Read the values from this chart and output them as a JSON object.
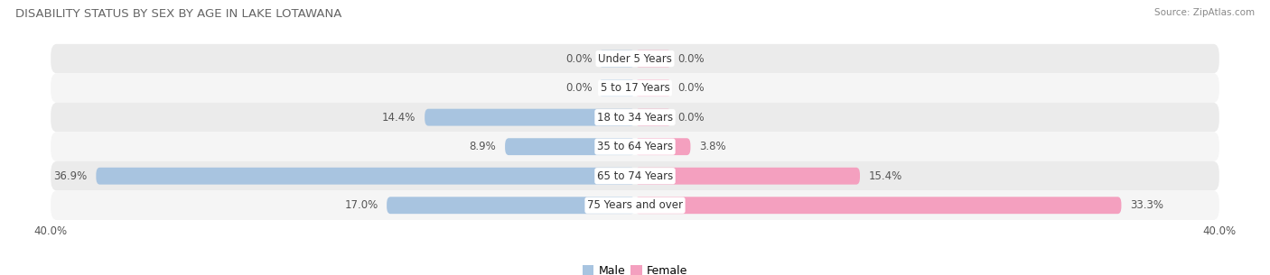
{
  "title": "DISABILITY STATUS BY SEX BY AGE IN LAKE LOTAWANA",
  "source": "Source: ZipAtlas.com",
  "categories": [
    "Under 5 Years",
    "5 to 17 Years",
    "18 to 34 Years",
    "35 to 64 Years",
    "65 to 74 Years",
    "75 Years and over"
  ],
  "male_values": [
    0.0,
    0.0,
    14.4,
    8.9,
    36.9,
    17.0
  ],
  "female_values": [
    0.0,
    0.0,
    0.0,
    3.8,
    15.4,
    33.3
  ],
  "male_color": "#a8c4e0",
  "female_color": "#f4a0bf",
  "row_colors": [
    "#ebebeb",
    "#f5f5f5",
    "#ebebeb",
    "#f5f5f5",
    "#ebebeb",
    "#f5f5f5"
  ],
  "x_max": 40.0,
  "x_min": -40.0,
  "bar_height": 0.58,
  "label_fontsize": 8.5,
  "title_fontsize": 9.5,
  "axis_label_fontsize": 8.5,
  "legend_fontsize": 9,
  "category_fontsize": 8.5,
  "bg_color": "#ffffff",
  "zero_bar_width": 2.5
}
